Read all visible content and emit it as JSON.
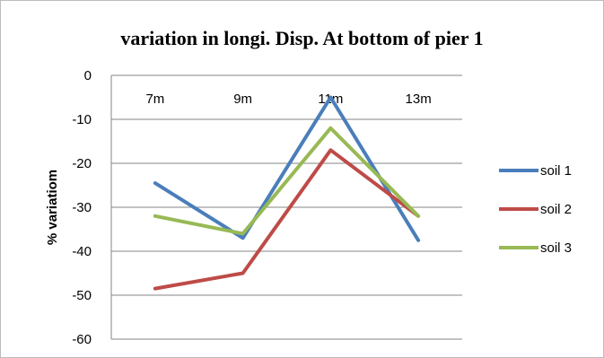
{
  "chart_data": {
    "type": "line",
    "title": "variation in longi. Disp. At bottom of pier 1",
    "xlabel": "",
    "ylabel": "% variatiom",
    "categories": [
      "7m",
      "9m",
      "11m",
      "13m"
    ],
    "ylim": [
      -60,
      0
    ],
    "yticks": [
      0,
      -10,
      -20,
      -30,
      -40,
      -50,
      -60
    ],
    "grid": true,
    "legend_position": "right",
    "series": [
      {
        "name": "soil 1",
        "color": "#4a7ebb",
        "values": [
          -24.5,
          -37,
          -5,
          -37.5
        ]
      },
      {
        "name": "soil 2",
        "color": "#be4b48",
        "values": [
          -48.5,
          -45,
          -17,
          -32
        ]
      },
      {
        "name": "soil 3",
        "color": "#98b954",
        "values": [
          -32,
          -36,
          -12,
          -32
        ]
      }
    ]
  }
}
